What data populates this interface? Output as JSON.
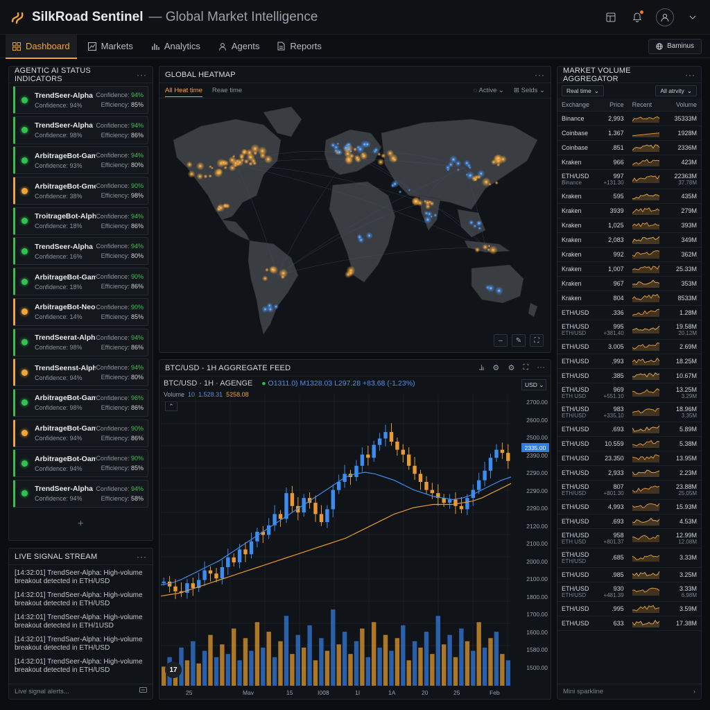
{
  "app": {
    "title": "SilkRoad Sentinel",
    "subtitle": "— Global Market Intelligence",
    "icons": [
      "logo-icon",
      "layout-icon",
      "bell-icon",
      "user-icon",
      "chevron-down-icon"
    ]
  },
  "nav": {
    "items": [
      {
        "label": "Dashboard",
        "icon": "grid-icon",
        "active": true
      },
      {
        "label": "Markets",
        "icon": "chart-icon",
        "active": false
      },
      {
        "label": "Analytics",
        "icon": "bars-icon",
        "active": false
      },
      {
        "label": "Agents",
        "icon": "person-icon",
        "active": false
      },
      {
        "label": "Reports",
        "icon": "document-icon",
        "active": false
      }
    ],
    "workspace_label": "Baminus"
  },
  "agents_panel": {
    "title": "AGENTIC AI STATUS INDICATORS",
    "agents": [
      {
        "name": "TrendSeer-Alpha",
        "confidence_left": "Confidence: 94%",
        "conf_label": "Confidence:",
        "conf_value": "94%",
        "eff_label": "Efficiency:",
        "eff_value": "85%",
        "status": "green"
      },
      {
        "name": "TrendSeer-Alpha",
        "confidence_left": "Confidence: 98%",
        "conf_label": "Confidence:",
        "conf_value": "94%",
        "eff_label": "Efficiency:",
        "eff_value": "86%",
        "status": "green"
      },
      {
        "name": "ArbitrageBot-Gamma",
        "confidence_left": "Confidence: 93%",
        "conf_label": "Confidence:",
        "conf_value": "94%",
        "eff_label": "Efficiency:",
        "eff_value": "80%",
        "status": "green"
      },
      {
        "name": "ArbitrageBot-Gme",
        "confidence_left": "Confidence: 38%",
        "conf_label": "Confidence:",
        "conf_value": "90%",
        "eff_label": "Efficiency:",
        "eff_value": "98%",
        "status": "amber"
      },
      {
        "name": "TroitrageBot-Alpha",
        "confidence_left": "Confidence: 18%",
        "conf_label": "Confidence:",
        "conf_value": "94%",
        "eff_label": "Efficiency:",
        "eff_value": "86%",
        "status": "green"
      },
      {
        "name": "TrendSeer-Alpha",
        "confidence_left": "Confidence: 16%",
        "conf_label": "Confidence:",
        "conf_value": "94%",
        "eff_label": "Efficiency:",
        "eff_value": "80%",
        "status": "green"
      },
      {
        "name": "ArbitrageBot-Gamma",
        "confidence_left": "Confidence: 18%",
        "conf_label": "Confidence:",
        "conf_value": "90%",
        "eff_label": "Efficiency:",
        "eff_value": "86%",
        "status": "green"
      },
      {
        "name": "ArbitrageBot-Neon",
        "confidence_left": "Confidence: 14%",
        "conf_label": "Confidence:",
        "conf_value": "90%",
        "eff_label": "Efficiency:",
        "eff_value": "85%",
        "status": "amber"
      },
      {
        "name": "TrendSeerat-Alpha",
        "confidence_left": "Confidence: 98%",
        "conf_label": "Confidence:",
        "conf_value": "94%",
        "eff_label": "Efficiency:",
        "eff_value": "86%",
        "status": "green"
      },
      {
        "name": "TrendSeenst-Alpha",
        "confidence_left": "Confidence: 94%",
        "conf_label": "Confidence:",
        "conf_value": "94%",
        "eff_label": "Efficiency:",
        "eff_value": "80%",
        "status": "amber"
      },
      {
        "name": "ArbitrageBot-Gamma",
        "confidence_left": "Confidence: 98%",
        "conf_label": "Confidence:",
        "conf_value": "96%",
        "eff_label": "Efficiency:",
        "eff_value": "86%",
        "status": "green"
      },
      {
        "name": "ArbitrageBot-Gamma",
        "confidence_left": "Confidence: 94%",
        "conf_label": "Confidence:",
        "conf_value": "90%",
        "eff_label": "Efficiency:",
        "eff_value": "86%",
        "status": "amber"
      },
      {
        "name": "ArbitrageBot-Oamn",
        "confidence_left": "Confidence: 94%",
        "conf_label": "Confidence:",
        "conf_value": "90%",
        "eff_label": "Efficiency:",
        "eff_value": "85%",
        "status": "green"
      },
      {
        "name": "TrendSeer-Alpha",
        "confidence_left": "Confidence: 94%",
        "conf_label": "Confidence:",
        "conf_value": "94%",
        "eff_label": "Efficiency:",
        "eff_value": "58%",
        "status": "green"
      }
    ],
    "add_label": "+"
  },
  "signal_panel": {
    "title": "LIVE SIGNAL STREAM",
    "messages": [
      "[14:32:01] TrendSeer-Alpha: High-volume breakout detected in ETH/USD",
      "[14:32:01] TrendSeer-Alpha: High-volume breakout detected in ETH/USD",
      "[14:32:01] TrendSeer-Alpha: High-volume breakout detected in ETH/1USD",
      "[14:32:01] TrendSaer-Alpha: High-volume breakout detected in ETH/USD",
      "[14:32:01] TrendSeer-Alpha: High-volume breakout detected in ETH/USD"
    ],
    "footer_placeholder": "Live signal alerts..."
  },
  "heatmap": {
    "title": "GLOBAL HEATMAP",
    "tab_active": "All Heat time",
    "tab_other": "Reae time",
    "filter_active": "Active",
    "filter_fields": "Selds",
    "colors": {
      "amber": "#f2a43a",
      "blue": "#3d8cf0",
      "land": "#3a3d42"
    }
  },
  "chart": {
    "panel_title": "BTC/USD - 1H AGGREGATE FEED",
    "symbol_line": "BTC/USD · 1H · AGENGE",
    "ohlc_o": "O1311.0)",
    "ohlc_m": "M1328.03",
    "ohlc_l": "L297.28",
    "ohlc_chg": "+83.68 (-1.23%)",
    "volume_label": "Volume",
    "volume_v1": "10",
    "volume_v2": "1.528.31",
    "volume_v3": "5258.08",
    "currency": "USD",
    "price_highlight": "2335.00",
    "logo_text": "17",
    "y_labels": [
      "2700.00",
      "2600.00",
      "2500.00",
      "2390.00",
      "2290.00",
      "2290.00",
      "2290.00",
      "2120.00",
      "2100.00",
      "2000.00",
      "2100.00",
      "1800.00",
      "1700.00",
      "1600.00",
      "1580.00",
      "1500.00"
    ],
    "x_labels": [
      "25",
      "Mav",
      "15",
      "I008",
      "1I",
      "1A",
      "20",
      "25",
      "Feb"
    ]
  },
  "chart_data": {
    "type": "line",
    "title": "BTC/USD - 1H AGGREGATE FEED",
    "note_series": "candlestick with two moving averages and volume bars",
    "ylim": [
      1500,
      2750
    ],
    "series": [
      {
        "values": [
          1630,
          1600,
          1570,
          1560,
          1620,
          1590,
          1640,
          1700,
          1680,
          1650,
          1720,
          1780,
          1750,
          1830,
          1800,
          1880,
          1940,
          1920,
          1980,
          2050,
          2020,
          2180,
          2100,
          2060,
          2150,
          2120,
          2050,
          2000,
          2080,
          2200,
          2250,
          2300,
          2280,
          2350,
          2420,
          2400,
          2480,
          2520,
          2560,
          2500,
          2450,
          2420,
          2350,
          2300,
          2250,
          2200,
          2180,
          2150,
          2120,
          2140,
          2100,
          2080,
          2150,
          2200,
          2260,
          2320,
          2400,
          2450,
          2430,
          2380
        ]
      },
      {
        "values": [
          1610,
          1620,
          1640,
          1670,
          1700,
          1730,
          1760,
          1800,
          1840,
          1880,
          1920,
          1960,
          2000,
          2040,
          2080,
          2120,
          2160,
          2200,
          2240,
          2280,
          2300,
          2310,
          2300,
          2280,
          2260,
          2230,
          2200,
          2180,
          2160,
          2150,
          2140,
          2150,
          2170,
          2200,
          2230,
          2260,
          2280
        ]
      },
      {
        "values": [
          1540,
          1550,
          1560,
          1580,
          1600,
          1620,
          1640,
          1660,
          1680,
          1700,
          1720,
          1740,
          1760,
          1780,
          1800,
          1820,
          1840,
          1860,
          1880,
          1900,
          1930,
          1960,
          1990,
          2020,
          2050,
          2070,
          2090,
          2100,
          2110,
          2110,
          2110,
          2120,
          2130,
          2150,
          2180,
          2210,
          2240
        ]
      }
    ],
    "volume": [
      30,
      45,
      25,
      60,
      40,
      70,
      35,
      55,
      80,
      45,
      65,
      50,
      90,
      40,
      75,
      55,
      100,
      60,
      85,
      45,
      70,
      110,
      50,
      80,
      60,
      95,
      40,
      75,
      55,
      120,
      65,
      85,
      50,
      70,
      90,
      45,
      100,
      60,
      80,
      55,
      75,
      95,
      40,
      70,
      60,
      85,
      50,
      110,
      65,
      80,
      45,
      90,
      70,
      55,
      100,
      60,
      75,
      85,
      50,
      40
    ]
  },
  "market_volume": {
    "title": "MARKET VOLUME AGGREGATOR",
    "filter1": "Real time",
    "filter2": "All atrvity",
    "headers": [
      "Exchange",
      "Price",
      "Recent",
      "Volume"
    ],
    "rows": [
      {
        "exchange": "Binance",
        "price": "2,993",
        "volume": "35333M"
      },
      {
        "exchange": "Coinbase",
        "price": "1.367",
        "volume": "1928M"
      },
      {
        "exchange": "Coinbase",
        "price": ".851",
        "volume": "2336M"
      },
      {
        "exchange": "Kraken",
        "price": "966",
        "volume": "423M"
      },
      {
        "exchange": "ETH/USD",
        "exchange_sub": "Binance",
        "price": "997",
        "price_sub": "+131.30",
        "volume": "22363M",
        "volume_sub": "37.78M"
      },
      {
        "exchange": "Kraken",
        "price": "595",
        "volume": "435M"
      },
      {
        "exchange": "Kraken",
        "price": "3939",
        "volume": "279M"
      },
      {
        "exchange": "Kraken",
        "price": "1,025",
        "volume": "393M"
      },
      {
        "exchange": "Kraken",
        "price": "2,083",
        "volume": "349M"
      },
      {
        "exchange": "Kraken",
        "price": "992",
        "volume": "362M"
      },
      {
        "exchange": "Kraken",
        "price": "1,007",
        "volume": "25.33M"
      },
      {
        "exchange": "Kraken",
        "price": "967",
        "volume": "353M"
      },
      {
        "exchange": "Kraken",
        "price": "804",
        "volume": "8533M"
      },
      {
        "exchange": "ETH/USD",
        "price": ".336",
        "volume": "1.28M"
      },
      {
        "exchange": "ETH/USD",
        "exchange_sub": "ETH/USD",
        "price": "995",
        "price_sub": "+381.40",
        "volume": "19.58M",
        "volume_sub": "20.12M"
      },
      {
        "exchange": "ETH/USD",
        "price": "3.005",
        "volume": "2.69M"
      },
      {
        "exchange": "ETH/USD",
        "price": ".993",
        "volume": "18.25M"
      },
      {
        "exchange": "ETH/USD",
        "price": ".385",
        "volume": "10.67M"
      },
      {
        "exchange": "ETH/USD",
        "exchange_sub": "ETH USD",
        "price": "969",
        "price_sub": "+551.10",
        "volume": "13.25M",
        "volume_sub": "3.29M"
      },
      {
        "exchange": "ETH/USD",
        "exchange_sub": "ETH/USD",
        "price": "983",
        "price_sub": "+335.10",
        "volume": "18.96M",
        "volume_sub": "3.35M"
      },
      {
        "exchange": "ETH/USD",
        "price": ".693",
        "volume": "5.89M"
      },
      {
        "exchange": "ETH/USD",
        "price": "10.559",
        "volume": "5.38M"
      },
      {
        "exchange": "ETH/USD",
        "price": "23.350",
        "volume": "13.95M"
      },
      {
        "exchange": "ETH/USD",
        "price": "2,933",
        "volume": "2.23M"
      },
      {
        "exchange": "ETH/USD",
        "exchange_sub": "ETH/USD",
        "price": "807",
        "price_sub": "+801.30",
        "volume": "23.88M",
        "volume_sub": "25.05M"
      },
      {
        "exchange": "ETH/USD",
        "price": "4,993",
        "volume": "15.93M"
      },
      {
        "exchange": "ETH/USD",
        "price": ".693",
        "volume": "4.53M"
      },
      {
        "exchange": "ETH/USD",
        "exchange_sub": "ETH USD",
        "price": "958",
        "price_sub": "+801.37",
        "volume": "12.99M",
        "volume_sub": "12.08M"
      },
      {
        "exchange": "ETH/USD",
        "exchange_sub": "ETH/USD",
        "price": ".685",
        "volume": "3.33M"
      },
      {
        "exchange": "ETH/USD",
        "price": ".985",
        "volume": "3.25M"
      },
      {
        "exchange": "ETH/USD",
        "exchange_sub": "ETH/USD",
        "price": "930",
        "price_sub": "+481.39",
        "volume": "3.33M",
        "volume_sub": "6.98M"
      },
      {
        "exchange": "ETH/USD",
        "price": ".995",
        "volume": "3.59M"
      },
      {
        "exchange": "ETH/USD",
        "price": "633",
        "volume": "17.38M"
      }
    ],
    "footer": "Mini sparkline",
    "footer_arrow": "›"
  }
}
